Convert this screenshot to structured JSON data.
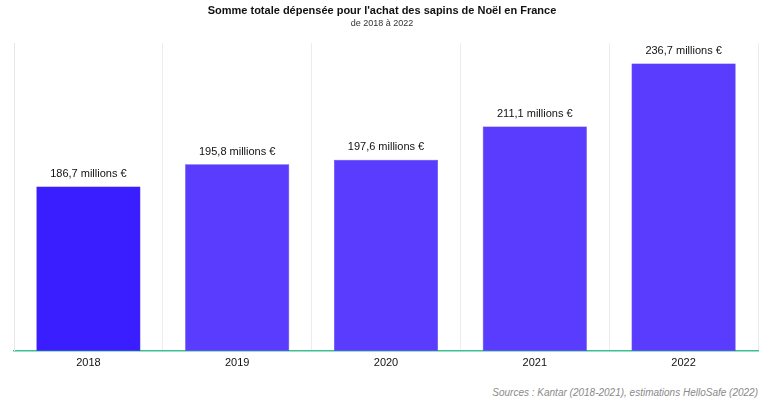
{
  "chart_data": {
    "type": "bar",
    "title": "Somme totale dépensée pour l'achat des sapins de Noël en France",
    "subtitle": "de 2018 à 2022",
    "categories": [
      "2018",
      "2019",
      "2020",
      "2021",
      "2022"
    ],
    "values": [
      186.7,
      195.8,
      197.6,
      211.1,
      236.7
    ],
    "value_labels": [
      "186,7 millions €",
      "195,8 millions €",
      "197,6 millions €",
      "211,1 millions €",
      "236,7 millions €"
    ],
    "data_labels": true,
    "colors": [
      "#3b1eff",
      "#5a3cff",
      "#5a3cff",
      "#5a3cff",
      "#5a3cff"
    ],
    "ylim": [
      120,
      245
    ],
    "tick_labels": "x",
    "grid": true,
    "annotations": [
      "Sources : Kantar (2018-2021), estimations HelloSafe (2022)"
    ]
  }
}
